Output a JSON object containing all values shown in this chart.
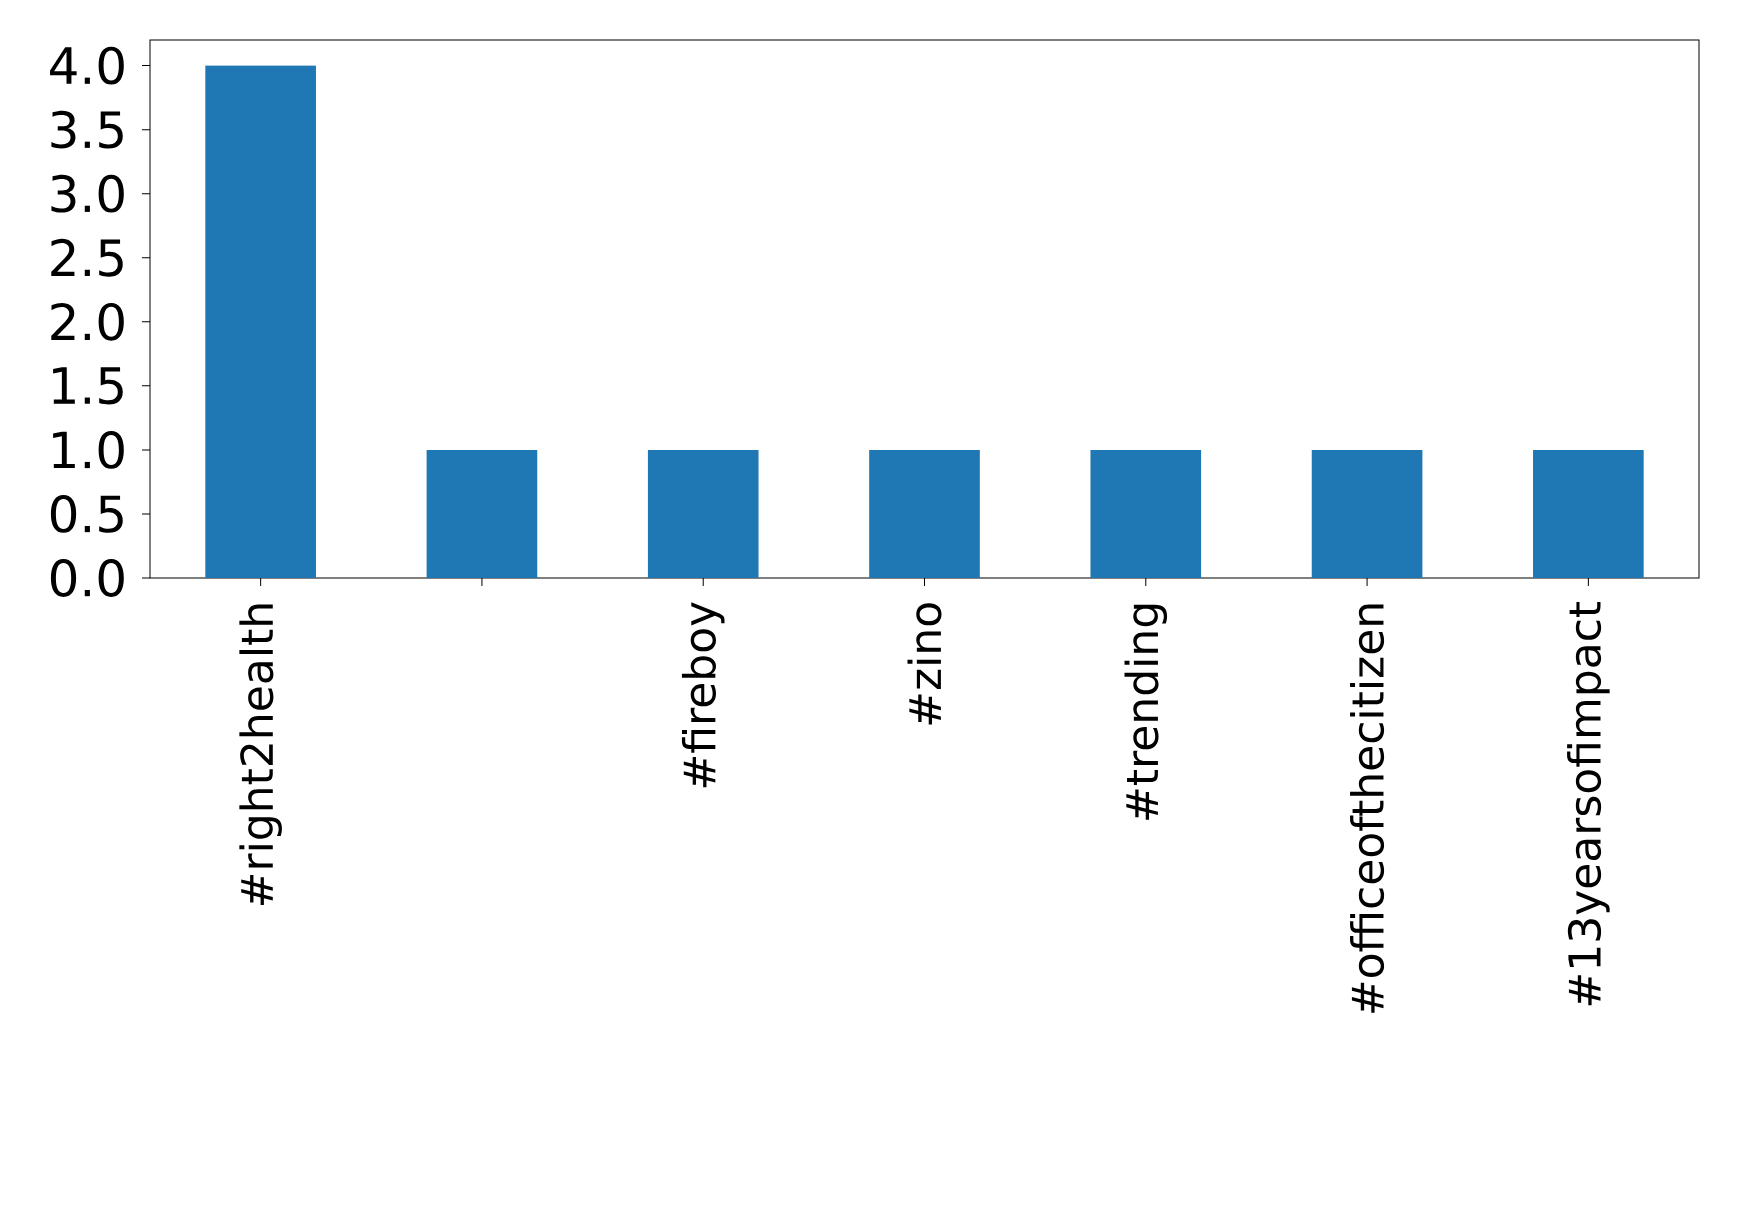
{
  "chart_data": {
    "type": "bar",
    "categories": [
      "#right2health",
      null,
      "#fireboy",
      "#zino",
      "#trending",
      "#officeofthecitizen",
      "#13yearsofimpact"
    ],
    "values": [
      4,
      1,
      1,
      1,
      1,
      1,
      1
    ],
    "color": "#1f77b4",
    "ylim": [
      0,
      4.2
    ],
    "yticks": [
      {
        "value": 0,
        "label": "0.0"
      },
      {
        "value": 0.5,
        "label": "0.5"
      },
      {
        "value": 1,
        "label": "1.0"
      },
      {
        "value": 1.5,
        "label": "1.5"
      },
      {
        "value": 2,
        "label": "2.0"
      },
      {
        "value": 2.5,
        "label": "2.5"
      },
      {
        "value": 3,
        "label": "3.0"
      },
      {
        "value": 3.5,
        "label": "3.5"
      },
      {
        "value": 4,
        "label": "4.0"
      }
    ]
  }
}
